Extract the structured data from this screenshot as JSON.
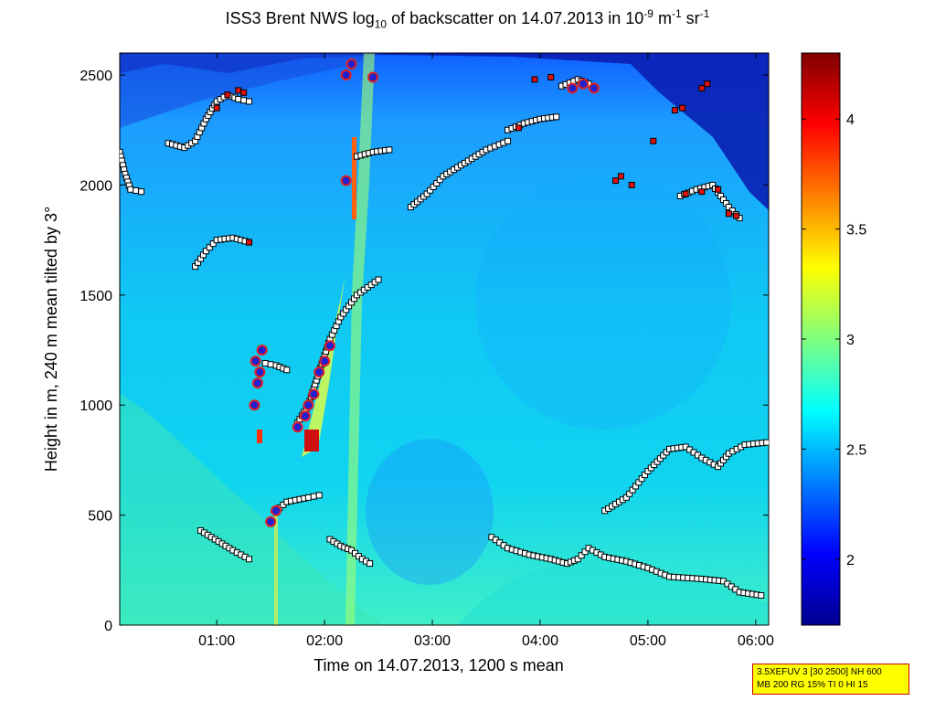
{
  "chart_data": {
    "type": "heatmap",
    "title": {
      "p1": "ISS3 Brent NWS log",
      "p1_sub": "10",
      "p2": " of backscatter on 14.07.2013 in 10",
      "p2_sup": "-9",
      "p3": " m",
      "p3_sup": "-1",
      "p4": " sr",
      "p4_sup": "-1"
    },
    "xlabel": "Time on 14.07.2013, 1200 s mean",
    "ylabel": "Height in m, 240 m mean tilted by 3°",
    "xlim_hours": [
      0.1,
      6.12
    ],
    "ylim": [
      0,
      2600
    ],
    "x_ticks": [
      {
        "value": 1,
        "label": "01:00"
      },
      {
        "value": 2,
        "label": "02:00"
      },
      {
        "value": 3,
        "label": "03:00"
      },
      {
        "value": 4,
        "label": "04:00"
      },
      {
        "value": 5,
        "label": "05:00"
      },
      {
        "value": 6,
        "label": "06:00"
      }
    ],
    "y_ticks": [
      {
        "value": 0,
        "label": "0"
      },
      {
        "value": 500,
        "label": "500"
      },
      {
        "value": 1000,
        "label": "1000"
      },
      {
        "value": 1500,
        "label": "1500"
      },
      {
        "value": 2000,
        "label": "2000"
      },
      {
        "value": 2500,
        "label": "2500"
      }
    ],
    "colorbar": {
      "range": [
        1.7,
        4.3
      ],
      "ticks": [
        {
          "value": 2,
          "label": "2"
        },
        {
          "value": 2.5,
          "label": "2.5"
        },
        {
          "value": 3,
          "label": "3"
        },
        {
          "value": 3.5,
          "label": "3.5"
        },
        {
          "value": 4,
          "label": "4"
        }
      ],
      "colormap": "jet"
    },
    "cloud_layers": [
      {
        "name": "low-layer",
        "points": [
          [
            0.85,
            430
          ],
          [
            0.95,
            400
          ],
          [
            1.05,
            370
          ],
          [
            1.15,
            340
          ],
          [
            1.3,
            300
          ]
        ]
      },
      {
        "name": "mid-low",
        "points": [
          [
            1.55,
            520
          ],
          [
            1.65,
            560
          ],
          [
            1.85,
            580
          ],
          [
            1.95,
            590
          ]
        ]
      },
      {
        "name": "low-2",
        "points": [
          [
            2.05,
            390
          ],
          [
            2.15,
            360
          ],
          [
            2.25,
            340
          ],
          [
            2.35,
            300
          ],
          [
            2.42,
            280
          ]
        ]
      },
      {
        "name": "long-low",
        "points": [
          [
            3.55,
            400
          ],
          [
            3.7,
            350
          ],
          [
            3.9,
            320
          ],
          [
            4.1,
            300
          ],
          [
            4.25,
            280
          ],
          [
            4.35,
            300
          ],
          [
            4.45,
            350
          ],
          [
            4.6,
            310
          ],
          [
            4.8,
            290
          ],
          [
            5.0,
            260
          ],
          [
            5.2,
            220
          ],
          [
            5.5,
            210
          ],
          [
            5.7,
            200
          ],
          [
            5.85,
            150
          ],
          [
            6.05,
            135
          ]
        ]
      },
      {
        "name": "rising-layer",
        "points": [
          [
            4.6,
            520
          ],
          [
            4.8,
            580
          ],
          [
            5.0,
            700
          ],
          [
            5.2,
            800
          ],
          [
            5.35,
            810
          ],
          [
            5.5,
            760
          ],
          [
            5.65,
            720
          ],
          [
            5.75,
            780
          ],
          [
            5.9,
            820
          ],
          [
            6.1,
            830
          ]
        ]
      },
      {
        "name": "layer-1750",
        "points": [
          [
            0.8,
            1630
          ],
          [
            0.9,
            1700
          ],
          [
            1.0,
            1750
          ],
          [
            1.15,
            1760
          ],
          [
            1.3,
            1740
          ]
        ]
      },
      {
        "name": "layer-2200",
        "points": [
          [
            0.55,
            2190
          ],
          [
            0.7,
            2170
          ],
          [
            0.8,
            2200
          ],
          [
            0.9,
            2300
          ],
          [
            1.0,
            2380
          ],
          [
            1.1,
            2410
          ],
          [
            1.2,
            2390
          ],
          [
            1.3,
            2380
          ]
        ]
      },
      {
        "name": "layer-2000-left",
        "points": [
          [
            0.1,
            2150
          ],
          [
            0.15,
            2050
          ],
          [
            0.2,
            1980
          ],
          [
            0.3,
            1970
          ]
        ]
      },
      {
        "name": "rising-1000-1500",
        "points": [
          [
            1.75,
            920
          ],
          [
            1.85,
            1000
          ],
          [
            1.95,
            1150
          ],
          [
            2.05,
            1300
          ],
          [
            2.15,
            1400
          ],
          [
            2.3,
            1500
          ],
          [
            2.5,
            1570
          ]
        ]
      },
      {
        "name": "layer-1170",
        "points": [
          [
            1.45,
            1190
          ],
          [
            1.55,
            1180
          ],
          [
            1.65,
            1160
          ]
        ]
      },
      {
        "name": "layer-2100",
        "points": [
          [
            2.8,
            1900
          ],
          [
            2.95,
            1960
          ],
          [
            3.1,
            2040
          ],
          [
            3.3,
            2100
          ],
          [
            3.5,
            2160
          ],
          [
            3.7,
            2200
          ]
        ]
      },
      {
        "name": "layer-2300",
        "points": [
          [
            3.7,
            2250
          ],
          [
            3.85,
            2280
          ],
          [
            4.0,
            2300
          ],
          [
            4.15,
            2310
          ]
        ]
      },
      {
        "name": "layer-2450",
        "points": [
          [
            4.2,
            2450
          ],
          [
            4.35,
            2480
          ],
          [
            4.45,
            2460
          ]
        ]
      },
      {
        "name": "layer-1950-right",
        "points": [
          [
            5.3,
            1950
          ],
          [
            5.45,
            1980
          ],
          [
            5.6,
            2000
          ],
          [
            5.75,
            1900
          ],
          [
            5.85,
            1850
          ]
        ]
      },
      {
        "name": "layer-2150",
        "points": [
          [
            2.3,
            2130
          ],
          [
            2.45,
            2150
          ],
          [
            2.6,
            2160
          ]
        ]
      }
    ],
    "red_markers": [
      [
        1.1,
        2410
      ],
      [
        1.2,
        2430
      ],
      [
        1.25,
        2420
      ],
      [
        1.0,
        2350
      ],
      [
        1.3,
        1740
      ],
      [
        3.95,
        2480
      ],
      [
        4.1,
        2490
      ],
      [
        3.8,
        2260
      ],
      [
        5.05,
        2200
      ],
      [
        5.25,
        2340
      ],
      [
        5.32,
        2350
      ],
      [
        5.5,
        2440
      ],
      [
        5.55,
        2460
      ],
      [
        5.35,
        1960
      ],
      [
        5.5,
        1970
      ],
      [
        5.65,
        1980
      ],
      [
        5.75,
        1870
      ],
      [
        5.82,
        1860
      ],
      [
        4.7,
        2020
      ],
      [
        4.75,
        2040
      ],
      [
        4.85,
        2000
      ]
    ],
    "blue_markers": [
      [
        1.35,
        1000
      ],
      [
        1.38,
        1100
      ],
      [
        1.4,
        1150
      ],
      [
        1.42,
        1250
      ],
      [
        1.36,
        1200
      ],
      [
        1.5,
        470
      ],
      [
        1.55,
        520
      ],
      [
        1.75,
        900
      ],
      [
        1.82,
        950
      ],
      [
        1.85,
        1000
      ],
      [
        1.9,
        1050
      ],
      [
        1.95,
        1150
      ],
      [
        2.0,
        1200
      ],
      [
        2.05,
        1270
      ],
      [
        2.2,
        2020
      ],
      [
        2.25,
        2550
      ],
      [
        2.2,
        2500
      ],
      [
        2.45,
        2490
      ],
      [
        4.3,
        2440
      ],
      [
        4.4,
        2460
      ],
      [
        4.5,
        2440
      ]
    ]
  },
  "info_box": {
    "line1": "3.5XEFUV 3 [30 2500] NH 600",
    "line2": "MB 200 RG 15% TI 0 HI 15"
  }
}
